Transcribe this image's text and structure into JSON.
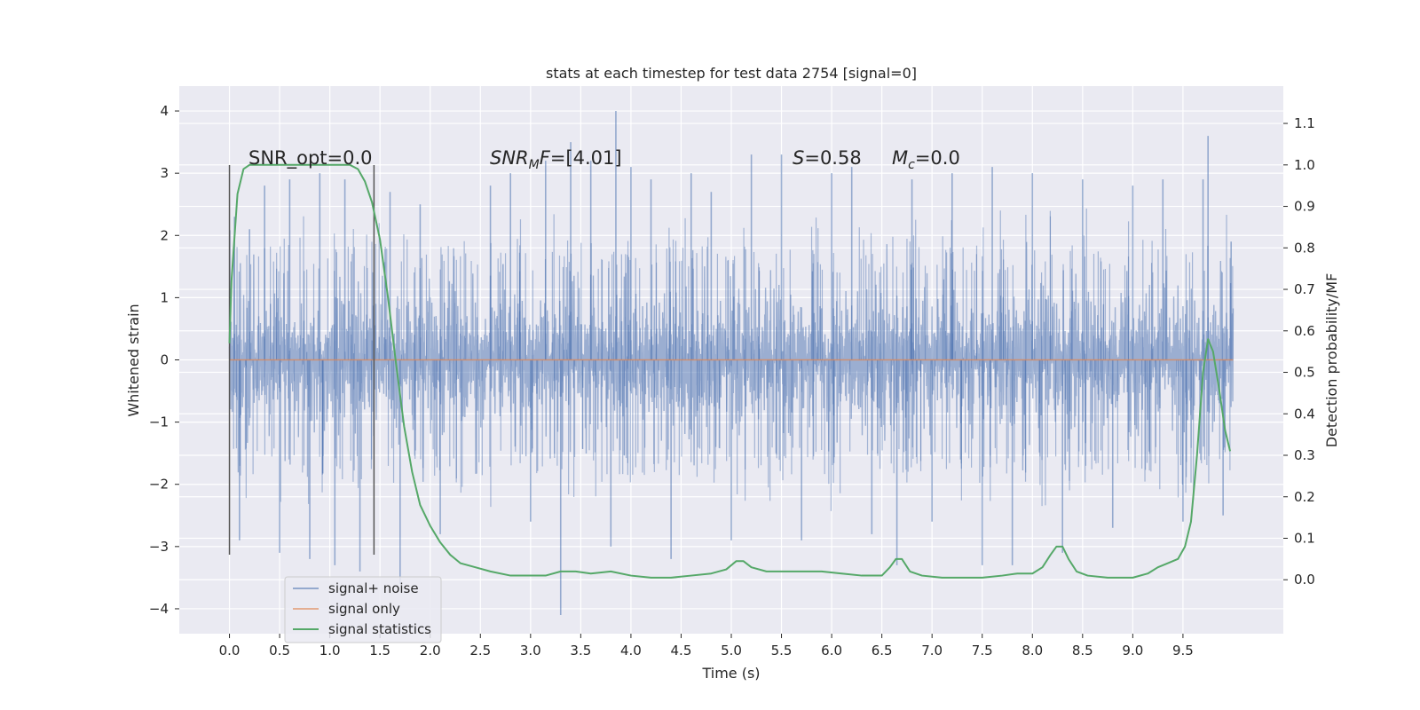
{
  "chart_data": {
    "type": "line",
    "title": "stats at each timestep for test data 2754 [signal=0]",
    "xlabel": "Time (s)",
    "ylabel": "Whitened strain",
    "y2label": "Detection probability/MF",
    "xlim": [
      -0.5,
      10.5
    ],
    "ylim": [
      -4.4,
      4.4
    ],
    "y2lim": [
      -0.13,
      1.19
    ],
    "x_ticks": [
      "0.0",
      "0.5",
      "1.0",
      "1.5",
      "2.0",
      "2.5",
      "3.0",
      "3.5",
      "4.0",
      "4.5",
      "5.0",
      "5.5",
      "6.0",
      "6.5",
      "7.0",
      "7.5",
      "8.0",
      "8.5",
      "9.0",
      "9.5"
    ],
    "y_ticks": [
      "4",
      "3",
      "2",
      "1",
      "0",
      "−1",
      "−2",
      "−3",
      "−4"
    ],
    "y2_ticks": [
      "1.1",
      "1.0",
      "0.9",
      "0.8",
      "0.7",
      "0.6",
      "0.5",
      "0.4",
      "0.3",
      "0.2",
      "0.1",
      "0.0"
    ],
    "grid": true,
    "legend_position": "lower-left",
    "colors": {
      "background": "#eaeaf2",
      "grid": "#ffffff",
      "noise": "#4c72b0",
      "signal": "#dd8452",
      "stats": "#55a868",
      "vline": "#555555"
    },
    "annotations": {
      "snr_opt": "SNR_opt=0.0",
      "snr_mf_italic": "SNR",
      "snr_mf_sub": "M",
      "snr_mf_rest_italic": "F",
      "snr_mf_value": "=[4.01]",
      "s_italic": "S",
      "s_value": "=0.58",
      "mc_italic": "M",
      "mc_sub": "c",
      "mc_value": "=0.0"
    },
    "vlines": [
      0.0,
      1.44
    ],
    "series": [
      {
        "name": "signal+ noise",
        "axis": "left",
        "note_range": [
          0.0,
          10.0
        ],
        "typical_envelope": [
          -1.3,
          1.3
        ],
        "spikes": [
          [
            0.05,
            2.3
          ],
          [
            0.1,
            -2.9
          ],
          [
            0.2,
            2.1
          ],
          [
            0.35,
            2.8
          ],
          [
            0.5,
            -3.1
          ],
          [
            0.6,
            2.9
          ],
          [
            0.8,
            -3.2
          ],
          [
            0.9,
            3.0
          ],
          [
            1.05,
            -3.3
          ],
          [
            1.15,
            2.9
          ],
          [
            1.3,
            -3.4
          ],
          [
            1.6,
            2.7
          ],
          [
            1.7,
            -3.6
          ],
          [
            1.9,
            2.5
          ],
          [
            2.1,
            -2.8
          ],
          [
            2.6,
            2.8
          ],
          [
            2.8,
            3.0
          ],
          [
            3.0,
            -2.6
          ],
          [
            3.15,
            3.2
          ],
          [
            3.3,
            -4.1
          ],
          [
            3.4,
            3.5
          ],
          [
            3.6,
            3.2
          ],
          [
            3.8,
            -3.0
          ],
          [
            3.85,
            4.0
          ],
          [
            4.0,
            3.1
          ],
          [
            4.2,
            2.9
          ],
          [
            4.4,
            -3.2
          ],
          [
            4.6,
            3.0
          ],
          [
            4.8,
            2.7
          ],
          [
            5.0,
            -2.9
          ],
          [
            5.2,
            3.3
          ],
          [
            5.5,
            3.3
          ],
          [
            5.7,
            -2.9
          ],
          [
            6.0,
            3.0
          ],
          [
            6.2,
            3.1
          ],
          [
            6.4,
            -2.8
          ],
          [
            6.65,
            -3.3
          ],
          [
            6.8,
            2.9
          ],
          [
            7.0,
            -2.6
          ],
          [
            7.2,
            3.0
          ],
          [
            7.5,
            -3.3
          ],
          [
            7.6,
            3.1
          ],
          [
            7.8,
            -3.3
          ],
          [
            8.0,
            3.0
          ],
          [
            8.3,
            -3.1
          ],
          [
            8.5,
            2.9
          ],
          [
            8.8,
            -2.7
          ],
          [
            9.0,
            2.8
          ],
          [
            9.3,
            2.9
          ],
          [
            9.5,
            -2.6
          ],
          [
            9.7,
            2.9
          ],
          [
            9.75,
            3.6
          ],
          [
            9.9,
            -2.5
          ],
          [
            9.98,
            1.9
          ]
        ]
      },
      {
        "name": "signal only",
        "axis": "left",
        "x": [
          0.0,
          10.0
        ],
        "y": [
          0.0,
          0.0
        ]
      },
      {
        "name": "signal statistics",
        "axis": "right",
        "x": [
          0.0,
          0.02,
          0.08,
          0.14,
          0.2,
          0.3,
          0.5,
          0.8,
          1.0,
          1.1,
          1.2,
          1.28,
          1.35,
          1.42,
          1.5,
          1.58,
          1.66,
          1.74,
          1.82,
          1.9,
          2.0,
          2.1,
          2.2,
          2.3,
          2.45,
          2.6,
          2.8,
          3.0,
          3.15,
          3.3,
          3.45,
          3.6,
          3.8,
          4.0,
          4.2,
          4.4,
          4.6,
          4.8,
          4.95,
          5.05,
          5.12,
          5.2,
          5.35,
          5.5,
          5.7,
          5.9,
          6.1,
          6.3,
          6.5,
          6.58,
          6.64,
          6.7,
          6.78,
          6.9,
          7.1,
          7.3,
          7.5,
          7.7,
          7.85,
          8.0,
          8.1,
          8.18,
          8.24,
          8.3,
          8.36,
          8.44,
          8.55,
          8.75,
          9.0,
          9.15,
          9.25,
          9.35,
          9.45,
          9.52,
          9.58,
          9.64,
          9.7,
          9.75,
          9.8,
          9.86,
          9.92,
          9.97
        ],
        "y": [
          0.57,
          0.72,
          0.93,
          0.99,
          1.0,
          1.0,
          1.0,
          1.0,
          1.0,
          1.0,
          1.0,
          0.99,
          0.96,
          0.91,
          0.82,
          0.68,
          0.52,
          0.37,
          0.26,
          0.18,
          0.13,
          0.09,
          0.06,
          0.04,
          0.03,
          0.02,
          0.01,
          0.01,
          0.01,
          0.02,
          0.02,
          0.015,
          0.02,
          0.01,
          0.005,
          0.005,
          0.01,
          0.015,
          0.025,
          0.045,
          0.045,
          0.03,
          0.02,
          0.02,
          0.02,
          0.02,
          0.015,
          0.01,
          0.01,
          0.03,
          0.05,
          0.05,
          0.02,
          0.01,
          0.005,
          0.005,
          0.005,
          0.01,
          0.015,
          0.015,
          0.03,
          0.06,
          0.08,
          0.08,
          0.05,
          0.02,
          0.01,
          0.005,
          0.005,
          0.015,
          0.03,
          0.04,
          0.05,
          0.08,
          0.14,
          0.3,
          0.5,
          0.58,
          0.55,
          0.46,
          0.36,
          0.31
        ]
      }
    ]
  }
}
